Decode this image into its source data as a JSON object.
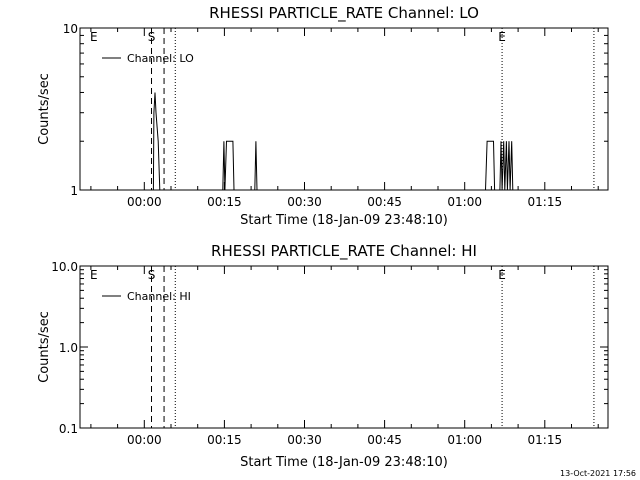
{
  "footer": {
    "timestamp": "13-Oct-2021 17:56"
  },
  "chart_data": [
    {
      "type": "line",
      "title": "RHESSI PARTICLE_RATE Channel: LO",
      "xlabel": "Start Time (18-Jan-09 23:48:10)",
      "ylabel": "Counts/sec",
      "x_tick_labels": [
        "00:00",
        "00:15",
        "00:30",
        "00:45",
        "01:00",
        "01:15"
      ],
      "y_scale": "log",
      "ylim": [
        1,
        10
      ],
      "y_ticks": [
        1,
        10
      ],
      "y_tick_labels": [
        "1",
        "10"
      ],
      "legend": {
        "position": "top-left",
        "entries": [
          "Channel: LO"
        ]
      },
      "markers": [
        {
          "label": "E",
          "time_min": -10.2,
          "style": "none"
        },
        {
          "label": "S",
          "time_min": 1.35,
          "style": "dashed"
        },
        {
          "label": "",
          "time_min": 3.7,
          "style": "dashed"
        },
        {
          "label": "",
          "time_min": 5.8,
          "style": "dotted"
        },
        {
          "label": "E",
          "time_min": 67.0,
          "style": "dotted"
        },
        {
          "label": "",
          "time_min": 84.2,
          "style": "dotted"
        }
      ],
      "series": [
        {
          "name": "Channel: LO",
          "points": [
            [
              1.7,
              1
            ],
            [
              1.8,
              3
            ],
            [
              2.0,
              4
            ],
            [
              2.2,
              3
            ],
            [
              2.6,
              2
            ],
            [
              2.9,
              1
            ],
            [
              14.7,
              1
            ],
            [
              14.9,
              2
            ],
            [
              15.1,
              1
            ],
            [
              15.4,
              2
            ],
            [
              16.6,
              2
            ],
            [
              16.8,
              1
            ],
            [
              20.7,
              1
            ],
            [
              20.9,
              2
            ],
            [
              21.1,
              1
            ],
            [
              63.9,
              1
            ],
            [
              64.2,
              2
            ],
            [
              65.4,
              2
            ],
            [
              65.6,
              1
            ],
            [
              66.6,
              1
            ],
            [
              66.8,
              2
            ],
            [
              67.0,
              1
            ],
            [
              67.3,
              2
            ],
            [
              67.5,
              1
            ],
            [
              67.8,
              2
            ],
            [
              68.0,
              1
            ],
            [
              68.3,
              2
            ],
            [
              68.5,
              1
            ],
            [
              68.8,
              2
            ],
            [
              69.0,
              1
            ]
          ]
        }
      ]
    },
    {
      "type": "line",
      "title": "RHESSI PARTICLE_RATE Channel: HI",
      "xlabel": "Start Time (18-Jan-09 23:48:10)",
      "ylabel": "Counts/sec",
      "x_tick_labels": [
        "00:00",
        "00:15",
        "00:30",
        "00:45",
        "01:00",
        "01:15"
      ],
      "y_scale": "log",
      "ylim": [
        0.1,
        10
      ],
      "y_ticks": [
        0.1,
        1,
        10
      ],
      "y_tick_labels": [
        "0.1",
        "1.0",
        "10.0"
      ],
      "legend": {
        "position": "top-left",
        "entries": [
          "Channel: HI"
        ]
      },
      "markers": [
        {
          "label": "E",
          "time_min": -10.2,
          "style": "none"
        },
        {
          "label": "S",
          "time_min": 1.35,
          "style": "dashed"
        },
        {
          "label": "",
          "time_min": 3.7,
          "style": "dashed"
        },
        {
          "label": "",
          "time_min": 5.8,
          "style": "dotted"
        },
        {
          "label": "E",
          "time_min": 67.0,
          "style": "dotted"
        },
        {
          "label": "",
          "time_min": 84.2,
          "style": "dotted"
        }
      ],
      "series": [
        {
          "name": "Channel: HI",
          "points": []
        }
      ]
    }
  ]
}
